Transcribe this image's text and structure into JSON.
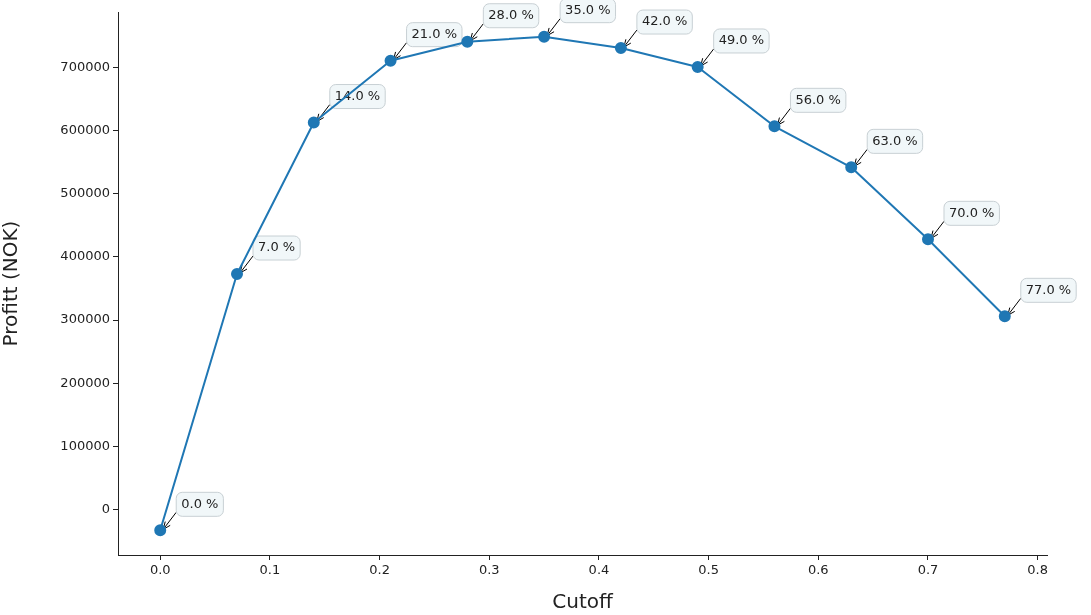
{
  "chart_data": {
    "type": "line",
    "xlabel": "Cutoff",
    "ylabel": "Profitt (NOK)",
    "x": [
      0,
      0.07,
      0.14,
      0.21,
      0.28,
      0.35,
      0.42,
      0.49,
      0.56,
      0.63,
      0.7,
      0.77
    ],
    "series": [
      {
        "color": "#1f77b4",
        "values": [
          -33000,
          373000,
          613000,
          711000,
          741000,
          749000,
          731000,
          701000,
          607000,
          542000,
          428000,
          306000
        ]
      }
    ],
    "xlim": [
      -0.0385,
      0.8085
    ],
    "xticks": [
      {
        "value": 0,
        "label": "0.0"
      },
      0.1,
      0.2,
      0.3,
      0.4,
      0.5,
      0.6,
      0.7,
      0.8
    ],
    "ylim": [
      -72100,
      788100
    ],
    "yticks": [
      0,
      100000,
      200000,
      300000,
      400000,
      500000,
      600000,
      700000
    ],
    "grid": false,
    "legend": false,
    "marker": "circle",
    "line_style": "solid",
    "annotations": [
      {
        "text": "0.0 %",
        "x": 0,
        "y": -33000
      },
      {
        "text": "7.0 %",
        "x": 0.07,
        "y": 373000
      },
      {
        "text": "14.0 %",
        "x": 0.14,
        "y": 613000
      },
      {
        "text": "21.0 %",
        "x": 0.21,
        "y": 711000
      },
      {
        "text": "28.0 %",
        "x": 0.28,
        "y": 741000
      },
      {
        "text": "35.0 %",
        "x": 0.35,
        "y": 749000
      },
      {
        "text": "42.0 %",
        "x": 0.42,
        "y": 731000
      },
      {
        "text": "49.0 %",
        "x": 0.49,
        "y": 701000
      },
      {
        "text": "56.0 %",
        "x": 0.56,
        "y": 607000
      },
      {
        "text": "63.0 %",
        "x": 0.63,
        "y": 542000
      },
      {
        "text": "70.0 %",
        "x": 0.7,
        "y": 428000
      },
      {
        "text": "77.0 %",
        "x": 0.77,
        "y": 306000
      }
    ]
  }
}
